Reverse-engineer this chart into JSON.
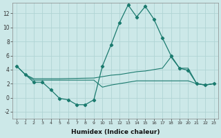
{
  "xlabel": "Humidex (Indice chaleur)",
  "bg_color": "#cce8e8",
  "line_color": "#1a7a6e",
  "grid_color": "#b0d4d4",
  "xlim": [
    -0.5,
    23.5
  ],
  "ylim": [
    -3.0,
    13.5
  ],
  "yticks": [
    -2,
    0,
    2,
    4,
    6,
    8,
    10,
    12
  ],
  "xticks": [
    0,
    1,
    2,
    3,
    4,
    5,
    6,
    7,
    8,
    9,
    10,
    11,
    12,
    13,
    14,
    15,
    16,
    17,
    18,
    19,
    20,
    21,
    22,
    23
  ],
  "line1_x": [
    0,
    1,
    2,
    3,
    4,
    5,
    6,
    7,
    8,
    9,
    10,
    11,
    12,
    13,
    14,
    15,
    16,
    17,
    18,
    19,
    20,
    21,
    22,
    23
  ],
  "line1_y": [
    4.5,
    3.3,
    2.2,
    2.2,
    1.1,
    -0.1,
    -0.3,
    -1.0,
    -1.0,
    -0.3,
    4.5,
    7.5,
    10.7,
    13.2,
    11.5,
    13.0,
    11.2,
    8.5,
    6.0,
    4.2,
    3.9,
    2.0,
    1.8,
    2.0
  ],
  "line2_x": [
    0,
    1,
    2,
    3,
    5,
    9,
    10,
    11,
    12,
    13,
    14,
    15,
    16,
    17,
    18,
    19,
    20,
    21,
    22,
    23
  ],
  "line2_y": [
    4.5,
    3.3,
    2.7,
    2.7,
    2.7,
    2.8,
    3.0,
    3.2,
    3.3,
    3.5,
    3.7,
    3.8,
    4.0,
    4.2,
    5.8,
    4.2,
    4.2,
    2.0,
    1.8,
    2.0
  ],
  "line3_x": [
    0,
    1,
    2,
    3,
    5,
    9,
    10,
    11,
    12,
    13,
    14,
    15,
    16,
    17,
    18,
    19,
    20,
    21,
    22,
    23
  ],
  "line3_y": [
    4.5,
    3.3,
    2.5,
    2.5,
    2.5,
    2.5,
    1.5,
    1.8,
    2.0,
    2.2,
    2.4,
    2.4,
    2.4,
    2.4,
    2.4,
    2.4,
    2.4,
    2.0,
    1.8,
    2.0
  ]
}
